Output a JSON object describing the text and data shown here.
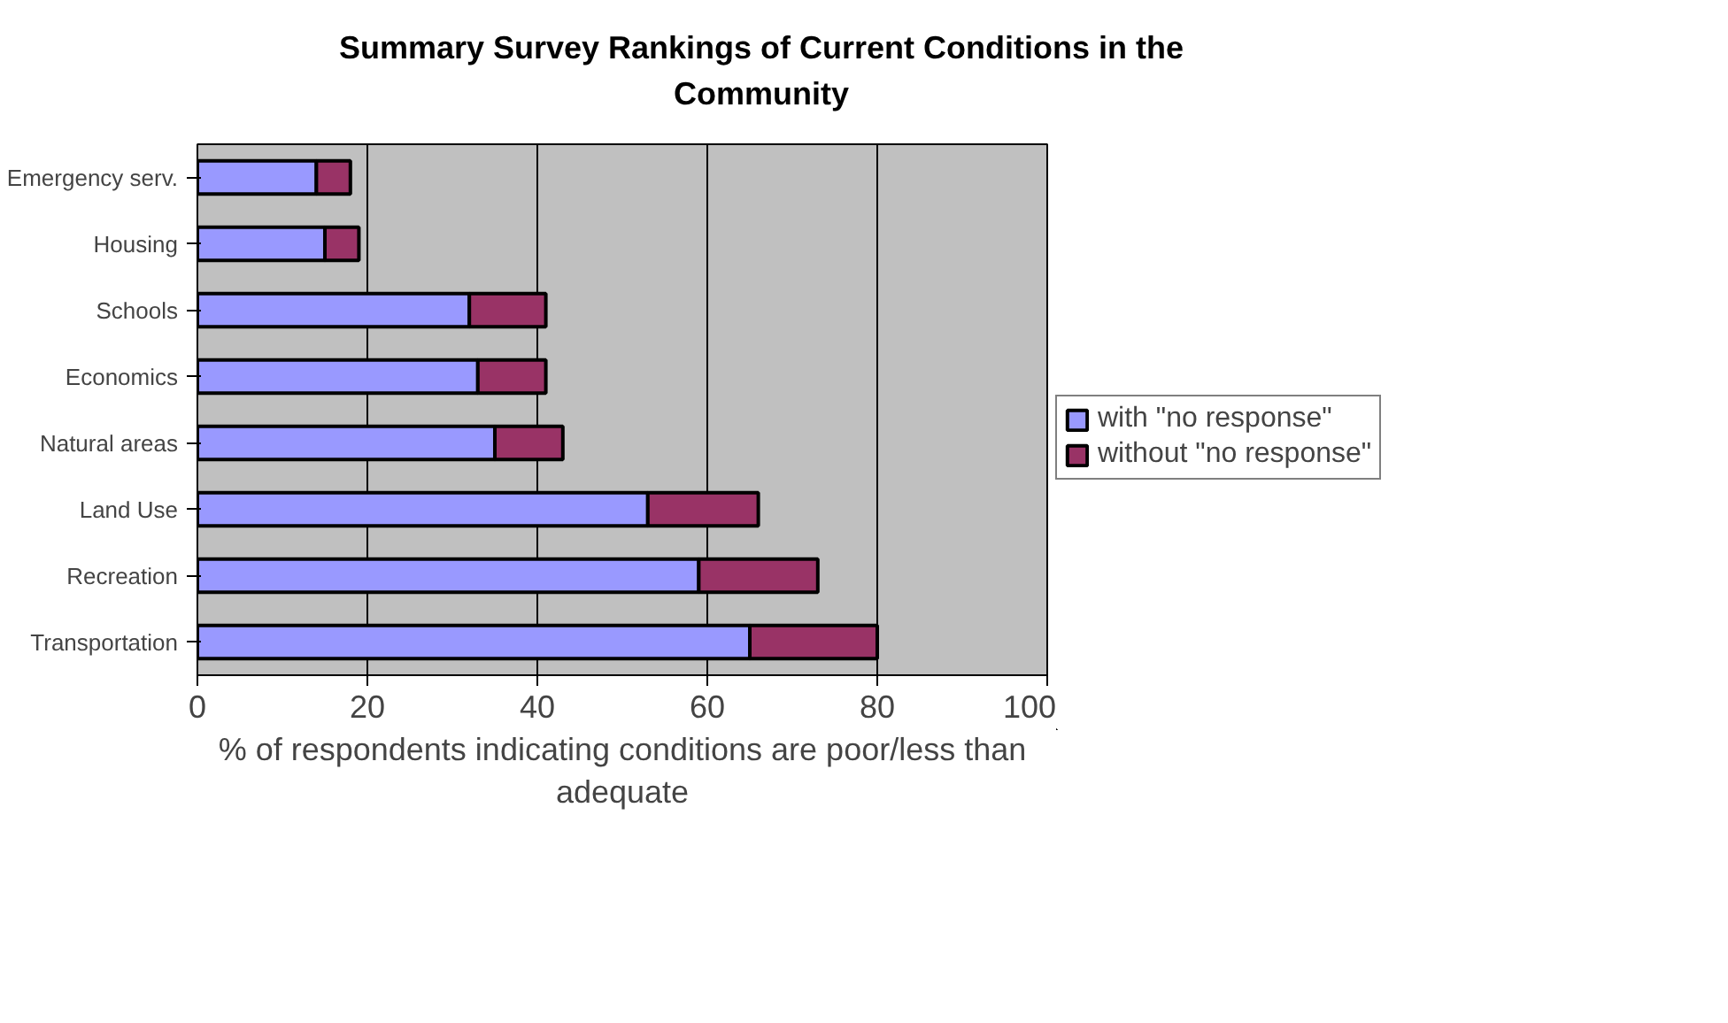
{
  "chart_data": {
    "type": "bar",
    "orientation": "horizontal",
    "stacked": true,
    "title": "Summary Survey Rankings of Current Conditions in the Community",
    "xlabel": "% of respondents indicating conditions are poor/less than adequate",
    "categories": [
      "Emergency serv.",
      "Housing",
      "Schools",
      "Economics",
      "Natural areas",
      "Land Use",
      "Recreation",
      "Transportation"
    ],
    "series": [
      {
        "name": "with \"no response\"",
        "color": "#9999ff",
        "values": [
          14,
          15,
          32,
          33,
          35,
          53,
          59,
          65
        ]
      },
      {
        "name": "without \"no response\"",
        "color": "#993366",
        "values": [
          4,
          4,
          9,
          8,
          8,
          13,
          14,
          15
        ]
      }
    ],
    "xlim": [
      0,
      100
    ],
    "xticks": [
      0,
      20,
      40,
      60,
      80,
      100
    ],
    "grid": "x",
    "legend": "right"
  }
}
